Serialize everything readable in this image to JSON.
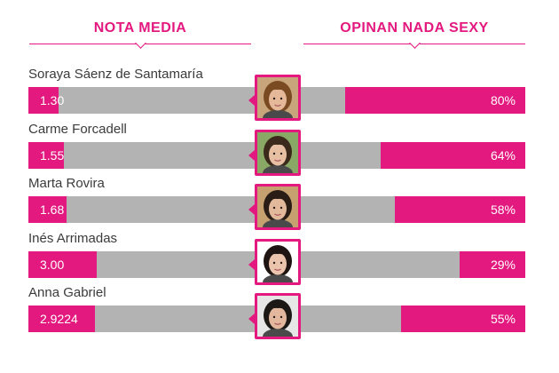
{
  "chart_data": {
    "type": "bar",
    "headers": {
      "left": "NOTA MEDIA",
      "right": "OPINAN NADA SEXY"
    },
    "left_scale_max": 10,
    "right_scale_max": 100,
    "rows": [
      {
        "name": "Soraya Sáenz de Santamaría",
        "nota_label": "1.30",
        "nota": 1.3,
        "nada_label": "80%",
        "nada": 80,
        "portrait": {
          "skin": "#e5b89a",
          "hair": "#7a4a22",
          "bg": "#c9a57c"
        }
      },
      {
        "name": "Carme Forcadell",
        "nota_label": "1.55",
        "nota": 1.55,
        "nada_label": "64%",
        "nada": 64,
        "portrait": {
          "skin": "#e7c0a4",
          "hair": "#3b2a1c",
          "bg": "#8aa865"
        }
      },
      {
        "name": "Marta Rovira",
        "nota_label": "1.68",
        "nota": 1.68,
        "nada_label": "58%",
        "nada": 58,
        "portrait": {
          "skin": "#e3b99b",
          "hair": "#2a1d16",
          "bg": "#c7a070"
        }
      },
      {
        "name": "Inés Arrimadas",
        "nota_label": "3.00",
        "nota": 3.0,
        "nada_label": "29%",
        "nada": 29,
        "portrait": {
          "skin": "#ebc4ad",
          "hair": "#1e1512",
          "bg": "#ffffff"
        }
      },
      {
        "name": "Anna Gabriel",
        "nota_label": "2.9224",
        "nota": 2.92,
        "nada_label": "55%",
        "nada": 55,
        "portrait": {
          "skin": "#e2b79d",
          "hair": "#1c1816",
          "bg": "#e6e6e6"
        }
      }
    ]
  },
  "colors": {
    "accent": "#e3197f",
    "track": "#b3b3b3",
    "name_text": "#3b3b3b",
    "value_text": "#ffffff"
  }
}
